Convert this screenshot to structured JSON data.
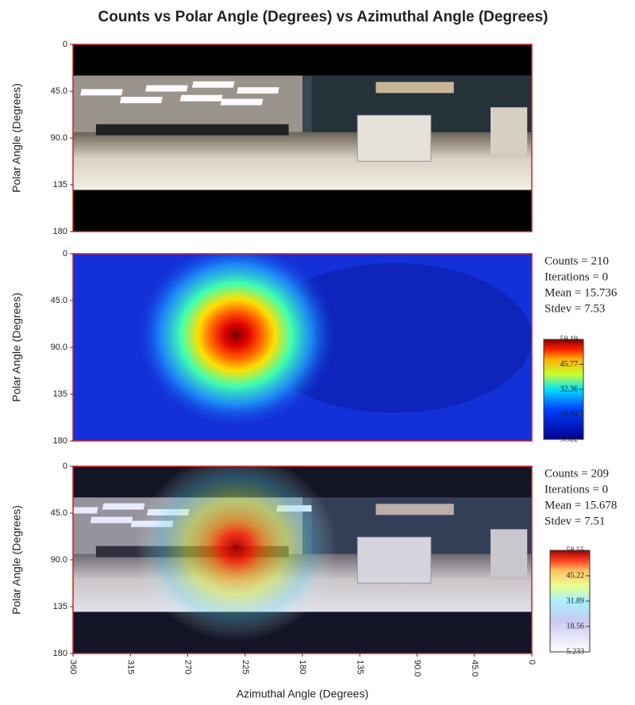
{
  "title": "Counts vs Polar Angle (Degrees) vs Azimuthal Angle (Degrees)",
  "chart_data": [
    {
      "type": "photo",
      "y_label": "Polar Angle (Degrees)",
      "ylim": [
        0,
        180
      ],
      "yticks": [
        0,
        {
          "value": 45,
          "label": "45.0"
        },
        {
          "value": 90,
          "label": "90.0"
        },
        135,
        180
      ]
    },
    {
      "type": "heatmap",
      "y_label": "Polar Angle (Degrees)",
      "ylim": [
        0,
        180
      ],
      "yticks": [
        0,
        {
          "value": 45,
          "label": "45.0"
        },
        {
          "value": 90,
          "label": "90.0"
        },
        135,
        180
      ],
      "stats": [
        "Counts = 210",
        "Iterations = 0",
        "Mean = 15.736",
        "Stdev = 7.53"
      ],
      "colorbar": {
        "lim": [
          5.522,
          59.19
        ],
        "ticks": [
          59.19,
          45.77,
          32.36,
          18.94,
          5.522
        ]
      }
    },
    {
      "type": "overlay",
      "y_label": "Polar Angle (Degrees)",
      "x_label": "Azimuthal Angle (Degrees)",
      "ylim": [
        0,
        180
      ],
      "yticks": [
        0,
        {
          "value": 45,
          "label": "45.0"
        },
        {
          "value": 90,
          "label": "90.0"
        },
        135,
        180
      ],
      "xlim": [
        360,
        0
      ],
      "xticks": [
        360,
        315,
        270,
        225,
        180,
        135,
        {
          "value": 90,
          "label": "90.0"
        },
        {
          "value": 45,
          "label": "45.0"
        },
        0
      ],
      "stats": [
        "Counts = 209",
        "Iterations = 0",
        "Mean = 15.678",
        "Stdev = 7.51"
      ],
      "colorbar": {
        "lim": [
          5.233,
          58.55
        ],
        "ticks": [
          58.55,
          45.22,
          31.89,
          18.56,
          5.233
        ]
      }
    }
  ]
}
